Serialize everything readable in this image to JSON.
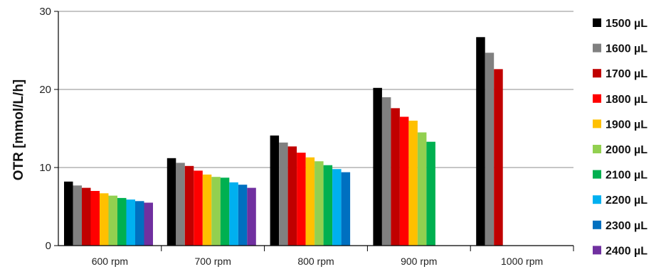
{
  "chart_data": {
    "type": "bar",
    "title": "",
    "xlabel": "",
    "ylabel": "OTR  [mmol/L/h]",
    "ylim": [
      0,
      30
    ],
    "yticks": [
      "0",
      "10",
      "20",
      "30"
    ],
    "grid": true,
    "legend_position": "right",
    "categories": [
      "600 rpm",
      "700 rpm",
      "800 rpm",
      "900 rpm",
      "1000 rpm"
    ],
    "series": [
      {
        "name": "1500 µL",
        "color": "#000000",
        "values": [
          8.2,
          11.2,
          14.1,
          20.2,
          26.7
        ]
      },
      {
        "name": "1600 µL",
        "color": "#808080",
        "values": [
          7.7,
          10.6,
          13.2,
          19.0,
          24.7
        ]
      },
      {
        "name": "1700 µL",
        "color": "#C00000",
        "values": [
          7.4,
          10.2,
          12.7,
          17.6,
          22.6
        ]
      },
      {
        "name": "1800 µL",
        "color": "#FF0000",
        "values": [
          7.0,
          9.6,
          11.9,
          16.5,
          null
        ]
      },
      {
        "name": "1900 µL",
        "color": "#FFC000",
        "values": [
          6.7,
          9.1,
          11.3,
          16.0,
          null
        ]
      },
      {
        "name": "2000 µL",
        "color": "#92D050",
        "values": [
          6.4,
          8.8,
          10.8,
          14.5,
          null
        ]
      },
      {
        "name": "2100 µL",
        "color": "#00B050",
        "values": [
          6.1,
          8.7,
          10.3,
          13.3,
          null
        ]
      },
      {
        "name": "2200 µL",
        "color": "#00B0F0",
        "values": [
          5.9,
          8.1,
          9.8,
          null,
          null
        ]
      },
      {
        "name": "2300 µL",
        "color": "#0070C0",
        "values": [
          5.7,
          7.8,
          9.4,
          null,
          null
        ]
      },
      {
        "name": "2400 µL",
        "color": "#7030A0",
        "values": [
          5.5,
          7.4,
          null,
          null,
          null
        ]
      }
    ]
  }
}
